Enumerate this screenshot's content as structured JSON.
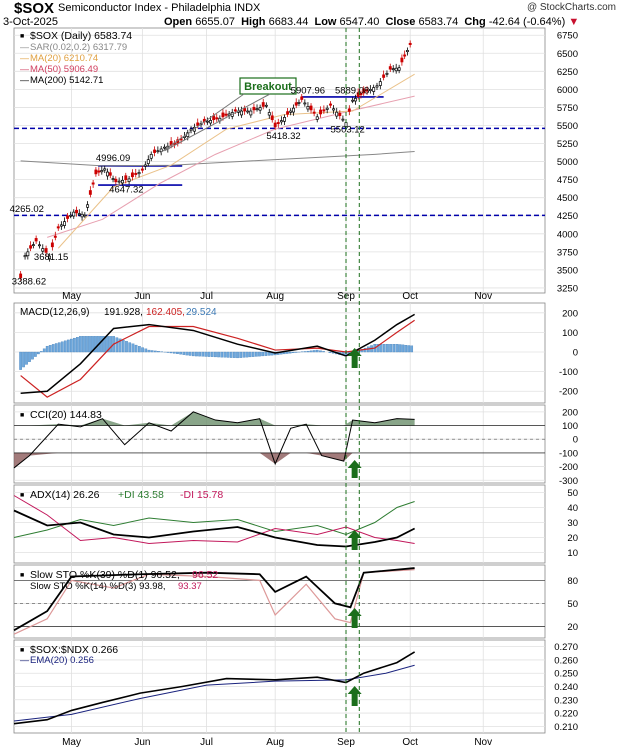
{
  "header": {
    "symbol": "$SOX",
    "description": "Semiconductor Index - Philadelphia  INDX",
    "date": "3-Oct-2025",
    "copyright": "@ StockCharts.com",
    "open_label": "Open",
    "open": "6655.07",
    "high_label": "High",
    "high": "6683.44",
    "low_label": "Low",
    "low": "6547.40",
    "close_label": "Close",
    "close": "6583.74",
    "chg_label": "Chg",
    "chg": "-42.64 (-0.64%)",
    "chg_color": "#c8102e"
  },
  "x_axis": {
    "labels": [
      "May",
      "Jun",
      "Jul",
      "Aug",
      "Sep",
      "Oct",
      "Nov"
    ]
  },
  "chart_data": [
    {
      "type": "candlestick",
      "title": "$SOX (Daily) 6583.74",
      "legend": [
        {
          "label": "SAR(0.02,0.2) 6317.79",
          "color": "#888888"
        },
        {
          "label": "MA(20) 6210.74",
          "color": "#e0a040"
        },
        {
          "label": "MA(50) 5906.49",
          "color": "#d04060"
        },
        {
          "label": "MA(200) 5142.71",
          "color": "#000000"
        }
      ],
      "y_ticks": [
        3250,
        3500,
        3750,
        4000,
        4250,
        4500,
        4750,
        5000,
        5250,
        5500,
        5750,
        6000,
        6250,
        6500,
        6750
      ],
      "ylim": [
        3180,
        6850
      ],
      "price_labels": [
        "3388.62",
        "3681.15",
        "4265.02",
        "4996.09",
        "4647.32",
        "5907.96",
        "5889.08",
        "5418.32",
        "5503.12"
      ],
      "annotation": "Breakout",
      "horizontal_lines": [
        {
          "y": 5460,
          "style": "dashed",
          "color": "#0000aa"
        },
        {
          "y": 4255,
          "style": "dashed",
          "color": "#0000aa"
        },
        {
          "y": 4940,
          "style": "solid",
          "color": "#0000aa"
        },
        {
          "y": 4675,
          "style": "solid",
          "color": "#0000aa"
        },
        {
          "y": 5895,
          "style": "solid",
          "color": "#0000aa"
        }
      ],
      "close_path": [
        [
          "2025-04-08",
          3390
        ],
        [
          "2025-04-10",
          3700
        ],
        [
          "2025-04-15",
          3900
        ],
        [
          "2025-04-21",
          3690
        ],
        [
          "2025-04-25",
          4080
        ],
        [
          "2025-05-02",
          4300
        ],
        [
          "2025-05-07",
          4260
        ],
        [
          "2025-05-12",
          4830
        ],
        [
          "2025-05-16",
          4900
        ],
        [
          "2025-05-21",
          4720
        ],
        [
          "2025-05-27",
          4760
        ],
        [
          "2025-06-02",
          4880
        ],
        [
          "2025-06-06",
          5100
        ],
        [
          "2025-06-12",
          5200
        ],
        [
          "2025-06-18",
          5250
        ],
        [
          "2025-06-24",
          5450
        ],
        [
          "2025-06-30",
          5550
        ],
        [
          "2025-07-07",
          5600
        ],
        [
          "2025-07-14",
          5700
        ],
        [
          "2025-07-21",
          5700
        ],
        [
          "2025-07-28",
          5780
        ],
        [
          "2025-08-01",
          5480
        ],
        [
          "2025-08-08",
          5700
        ],
        [
          "2025-08-13",
          5860
        ],
        [
          "2025-08-20",
          5620
        ],
        [
          "2025-08-26",
          5780
        ],
        [
          "2025-09-02",
          5540
        ],
        [
          "2025-09-05",
          5850
        ],
        [
          "2025-09-10",
          5950
        ],
        [
          "2025-09-16",
          6050
        ],
        [
          "2025-09-22",
          6280
        ],
        [
          "2025-09-26",
          6300
        ],
        [
          "2025-10-01",
          6620
        ],
        [
          "2025-10-03",
          6584
        ]
      ]
    },
    {
      "type": "line",
      "title": "MACD(12,26,9) 191.928, 162.405, 29.524",
      "y_ticks": [
        200,
        100,
        0,
        -100,
        -200
      ],
      "ylim": [
        -260,
        250
      ],
      "series": [
        {
          "name": "MACD(12,26,9)",
          "color": "#000000"
        },
        {
          "name": "Signal",
          "color": "#cc2222"
        },
        {
          "name": "Histogram",
          "color": "#4c8fc8"
        }
      ],
      "legend_values": [
        "191.928",
        "162.405",
        "29.524"
      ]
    },
    {
      "type": "line",
      "title": "CCI(20) 144.83",
      "y_ticks": [
        200,
        100,
        0,
        -100,
        -200,
        -300
      ],
      "ylim": [
        -320,
        250
      ]
    },
    {
      "type": "line",
      "title": "ADX(14) 26.26",
      "legend": [
        {
          "label": "ADX(14) 26.26",
          "color": "#000000"
        },
        {
          "label": "+DI 43.58",
          "color": "#2e7d32"
        },
        {
          "label": "-DI 15.78",
          "color": "#c2185b"
        }
      ],
      "y_ticks": [
        50,
        40,
        30,
        20,
        10
      ],
      "ylim": [
        3,
        55
      ]
    },
    {
      "type": "line",
      "title": "Slow STO",
      "legend": [
        {
          "label": "Slow STO %K(39) %D(1) 96.52,",
          "value": "96.52",
          "color": "#000000",
          "value_color": "#c2185b"
        },
        {
          "label": "Slow STO %K(14) %D(3) 93.98,",
          "value": "93.37",
          "color": "#000000",
          "value_color": "#c2185b"
        }
      ],
      "y_ticks": [
        80,
        50,
        20
      ],
      "ylim": [
        5,
        100
      ]
    },
    {
      "type": "line",
      "title": "$SOX:$NDX 0.266",
      "legend": [
        {
          "label": "$SOX:$NDX 0.266",
          "color": "#000000"
        },
        {
          "label": "EMA(20) 0.256",
          "color": "#1a237e"
        }
      ],
      "y_ticks": [
        0.27,
        0.26,
        0.25,
        0.24,
        0.23,
        0.22,
        0.21
      ],
      "y_tick_labels": [
        "0.270",
        "0.260",
        "0.250",
        "0.240",
        "0.230",
        "0.220",
        "0.210"
      ],
      "ylim": [
        0.205,
        0.275
      ]
    }
  ],
  "colors": {
    "up": "#000000",
    "down": "#cc0000",
    "guide": "#1b6e1b",
    "arrow": "#1b6e1b",
    "grid": "#e0e0e0"
  }
}
